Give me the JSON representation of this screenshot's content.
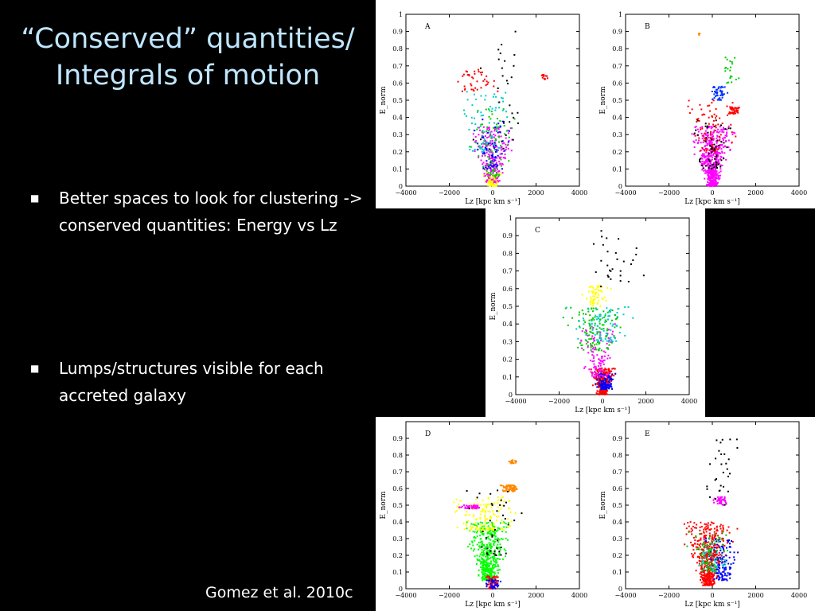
{
  "slide": {
    "title": "“Conserved” quantities/ Integrals of motion",
    "bullets": [
      {
        "marker": "■",
        "text": "Better spaces to look for clustering -> conserved quantities: Energy vs Lz"
      },
      {
        "marker": "■",
        "text": "Lumps/structures visible for each accreted galaxy"
      }
    ],
    "citation": "Gomez et al. 2010c"
  },
  "chart_data": [
    {
      "type": "scatter",
      "panel_label": "A",
      "xlabel": "Lz [kpc km s⁻¹]",
      "ylabel": "E_norm",
      "xlim": [
        -4000,
        4000
      ],
      "ylim": [
        0,
        1
      ],
      "xticks": [
        -4000,
        -2000,
        0,
        2000,
        4000
      ],
      "yticks": [
        0,
        0.1,
        0.2,
        0.3,
        0.4,
        0.5,
        0.6,
        0.7,
        0.8,
        0.9,
        1
      ],
      "colors": [
        "#ff00ff",
        "#ffff00",
        "#00cc00",
        "#00cccc",
        "#ff0000",
        "#0000ff",
        "#000000"
      ]
    },
    {
      "type": "scatter",
      "panel_label": "B",
      "xlabel": "Lz [kpc km s⁻¹]",
      "ylabel": "E_norm",
      "xlim": [
        -4000,
        4000
      ],
      "ylim": [
        0,
        1
      ],
      "xticks": [
        -4000,
        -2000,
        0,
        2000,
        4000
      ],
      "yticks": [
        0,
        0.1,
        0.2,
        0.3,
        0.4,
        0.5,
        0.6,
        0.7,
        0.8,
        0.9,
        1
      ],
      "colors": [
        "#ff00ff",
        "#ff0000",
        "#0033ff",
        "#00cc00",
        "#ff8800",
        "#000000"
      ]
    },
    {
      "type": "scatter",
      "panel_label": "C",
      "xlabel": "Lz [kpc km s⁻¹]",
      "ylabel": "E_norm",
      "xlim": [
        -4000,
        4000
      ],
      "ylim": [
        0,
        1
      ],
      "xticks": [
        -4000,
        -2000,
        0,
        2000,
        4000
      ],
      "yticks": [
        0,
        0.1,
        0.2,
        0.3,
        0.4,
        0.5,
        0.6,
        0.7,
        0.8,
        0.9,
        1
      ],
      "colors": [
        "#ff0000",
        "#0000ff",
        "#ff00ff",
        "#00cc00",
        "#ffff00",
        "#00cccc",
        "#000000"
      ]
    },
    {
      "type": "scatter",
      "panel_label": "D",
      "xlabel": "Lz [kpc km s⁻¹]",
      "ylabel": "E_norm",
      "xlim": [
        -4000,
        4000
      ],
      "ylim": [
        0,
        1
      ],
      "xticks": [
        -4000,
        -2000,
        0,
        2000,
        4000
      ],
      "yticks": [
        0,
        0.1,
        0.2,
        0.3,
        0.4,
        0.5,
        0.6,
        0.7,
        0.8,
        0.9
      ],
      "colors": [
        "#00ff00",
        "#ffff00",
        "#ff00ff",
        "#ff8800",
        "#ff0000",
        "#0000ff",
        "#000000"
      ]
    },
    {
      "type": "scatter",
      "panel_label": "E",
      "xlabel": "Lz [kpc km s⁻¹]",
      "ylabel": "E_norm",
      "xlim": [
        -4000,
        4000
      ],
      "ylim": [
        0,
        1
      ],
      "xticks": [
        -4000,
        -2000,
        0,
        2000,
        4000
      ],
      "yticks": [
        0,
        0.1,
        0.2,
        0.3,
        0.4,
        0.5,
        0.6,
        0.7,
        0.8,
        0.9
      ],
      "colors": [
        "#ff0000",
        "#0000ff",
        "#00cc00",
        "#ff00ff",
        "#00cccc",
        "#000000"
      ]
    }
  ]
}
